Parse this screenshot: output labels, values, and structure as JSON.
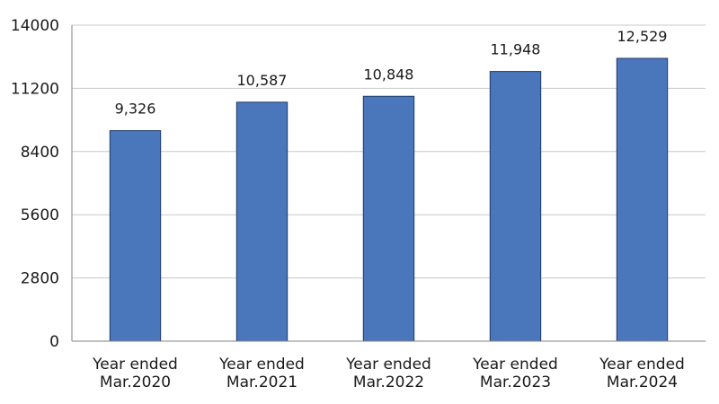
{
  "chart_data": {
    "type": "bar",
    "categories": [
      [
        "Year ended",
        "Mar.2020"
      ],
      [
        "Year ended",
        "Mar.2021"
      ],
      [
        "Year ended",
        "Mar.2022"
      ],
      [
        "Year ended",
        "Mar.2023"
      ],
      [
        "Year ended",
        "Mar.2024"
      ]
    ],
    "values": [
      9326,
      10587,
      10848,
      11948,
      12529
    ],
    "value_labels": [
      "9,326",
      "10,587",
      "10,848",
      "11,948",
      "12,529"
    ],
    "yticks": [
      0,
      2800,
      5600,
      8400,
      11200,
      14000
    ],
    "ytick_labels": [
      "0",
      "2800",
      "5600",
      "8400",
      "11200",
      "14000"
    ],
    "ylim": [
      0,
      14000
    ],
    "grid": true,
    "bar_color": "#4a76bb",
    "bar_edge_color": "#1f3a66",
    "grid_color": "#c8c8c8",
    "axis_color": "#808080"
  }
}
